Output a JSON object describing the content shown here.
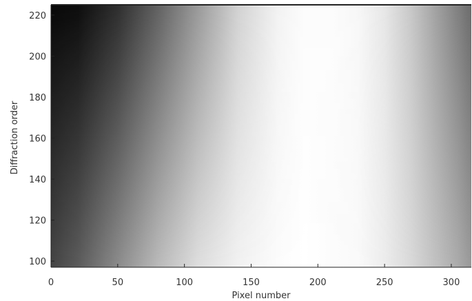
{
  "chart_data": {
    "type": "heatmap",
    "title": "",
    "xlabel": "Pixel number",
    "ylabel": "Diffraction order",
    "xlim": [
      0,
      315
    ],
    "ylim": [
      97,
      225
    ],
    "x_ticks": [
      "0",
      "50",
      "100",
      "150",
      "200",
      "250",
      "300"
    ],
    "y_ticks": [
      "100",
      "120",
      "140",
      "160",
      "180",
      "200",
      "220"
    ],
    "colormap": "grayscale",
    "grid": false,
    "brightness_profile": {
      "description_free": true,
      "x": [
        0,
        20,
        50,
        80,
        110,
        140,
        170,
        190,
        210,
        230,
        250,
        270,
        290,
        305,
        315
      ],
      "top_row": [
        0.03,
        0.05,
        0.18,
        0.38,
        0.6,
        0.82,
        0.95,
        0.99,
        0.99,
        0.97,
        0.9,
        0.78,
        0.62,
        0.5,
        0.42
      ],
      "bottom_row": [
        0.27,
        0.36,
        0.55,
        0.73,
        0.87,
        0.95,
        0.99,
        1.0,
        0.99,
        0.98,
        0.93,
        0.85,
        0.75,
        0.67,
        0.6
      ]
    }
  },
  "colors": {
    "background": "#ffffff",
    "axis": "#222222",
    "text": "#333333"
  }
}
